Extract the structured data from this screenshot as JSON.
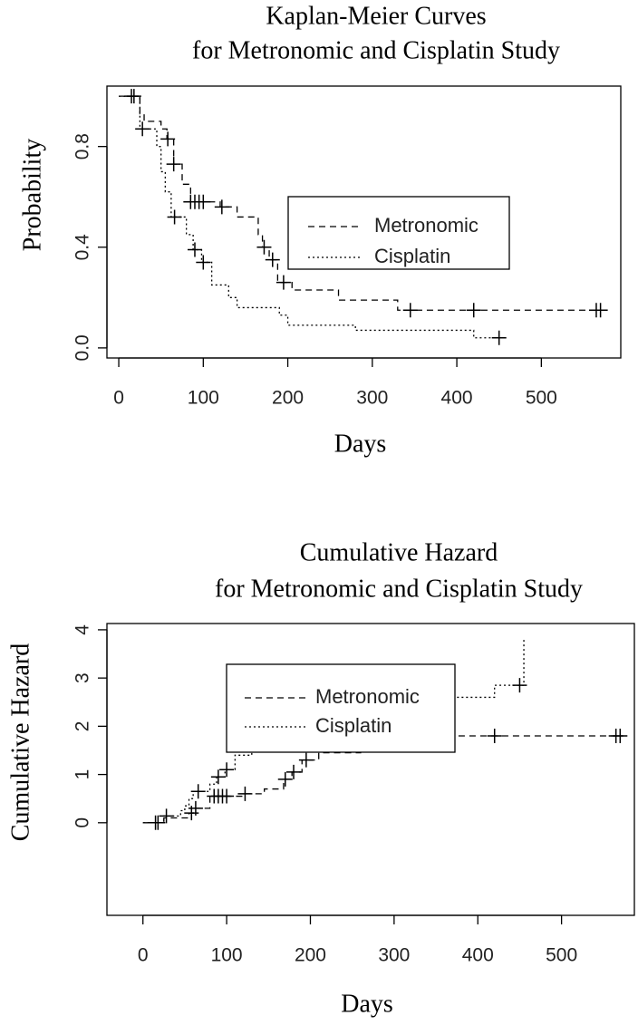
{
  "chart_data": [
    {
      "type": "step",
      "title": [
        "Kaplan-Meier Curves",
        "for Metronomic and Cisplatin Study"
      ],
      "x_label": "Days",
      "y_label": "Probability",
      "xlim": [
        -14,
        594
      ],
      "ylim": [
        -0.04,
        1.04
      ],
      "xticks": [
        0,
        100,
        200,
        300,
        400,
        500
      ],
      "yticks": [
        {
          "value": 0,
          "label": "0.0"
        },
        0.4,
        0.8
      ],
      "series": [
        {
          "name": "Metronomic",
          "color": "#000000",
          "dash": "dashed",
          "x": [
            0,
            25,
            30,
            50,
            57,
            65,
            75,
            85,
            120,
            140,
            165,
            170,
            178,
            188,
            205,
            260,
            330,
            572
          ],
          "values": [
            1,
            0.93,
            0.9,
            0.87,
            0.83,
            0.73,
            0.65,
            0.58,
            0.56,
            0.52,
            0.45,
            0.4,
            0.35,
            0.26,
            0.23,
            0.19,
            0.15,
            0.15
          ],
          "censored": {
            "x": [
              15,
              58,
              65,
              85,
              90,
              95,
              100,
              122,
              172,
              182,
              195,
              345,
              420,
              565,
              570
            ],
            "values": [
              1,
              0.83,
              0.73,
              0.58,
              0.58,
              0.58,
              0.58,
              0.56,
              0.4,
              0.35,
              0.26,
              0.15,
              0.15,
              0.15,
              0.15
            ]
          }
        },
        {
          "name": "Cisplatin",
          "color": "#000000",
          "dash": "dotted",
          "x": [
            0,
            25,
            45,
            50,
            55,
            62,
            80,
            88,
            98,
            110,
            130,
            140,
            190,
            200,
            280,
            420,
            455
          ],
          "values": [
            1,
            0.87,
            0.8,
            0.7,
            0.62,
            0.52,
            0.45,
            0.39,
            0.34,
            0.25,
            0.2,
            0.16,
            0.13,
            0.09,
            0.07,
            0.04,
            0.04
          ],
          "censored": {
            "x": [
              18,
              28,
              66,
              90,
              100,
              450
            ],
            "values": [
              1,
              0.87,
              0.52,
              0.39,
              0.34,
              0.04
            ]
          }
        }
      ]
    },
    {
      "type": "step",
      "title": [
        "Cumulative Hazard",
        "for Metronomic and Cisplatin Study"
      ],
      "x_label": "Days",
      "y_label": "Cumulative Hazard",
      "xlim": [
        -43,
        587
      ],
      "ylim": [
        -1.92,
        4.13
      ],
      "xticks": [
        0,
        100,
        200,
        300,
        400,
        500
      ],
      "yticks": [
        0,
        1,
        2,
        3,
        4
      ],
      "series": [
        {
          "name": "Metronomic",
          "color": "#000000",
          "dash": "dashed",
          "x": [
            0,
            25,
            55,
            60,
            80,
            120,
            145,
            168,
            178,
            190,
            210,
            260,
            330,
            572
          ],
          "values": [
            0,
            0.1,
            0.2,
            0.3,
            0.55,
            0.6,
            0.7,
            0.9,
            1.05,
            1.3,
            1.45,
            1.6,
            1.8,
            1.8
          ],
          "censored": {
            "x": [
              15,
              58,
              63,
              85,
              90,
              95,
              100,
              122,
              170,
              180,
              195,
              345,
              420,
              565,
              570
            ],
            "values": [
              0,
              0.2,
              0.3,
              0.55,
              0.55,
              0.55,
              0.55,
              0.6,
              0.9,
              1.05,
              1.3,
              1.8,
              1.8,
              1.8,
              1.8
            ]
          }
        },
        {
          "name": "Cisplatin",
          "color": "#000000",
          "dash": "dotted",
          "x": [
            0,
            25,
            45,
            50,
            55,
            60,
            80,
            88,
            98,
            110,
            130,
            140,
            190,
            200,
            280,
            420,
            455
          ],
          "values": [
            0,
            0.14,
            0.25,
            0.35,
            0.5,
            0.65,
            0.8,
            0.95,
            1.1,
            1.4,
            1.6,
            1.8,
            2.0,
            2.3,
            2.6,
            2.85,
            3.8
          ],
          "censored": {
            "x": [
              18,
              28,
              66,
              90,
              100,
              450
            ],
            "values": [
              0,
              0.14,
              0.65,
              0.95,
              1.1,
              2.85
            ]
          }
        }
      ]
    }
  ]
}
